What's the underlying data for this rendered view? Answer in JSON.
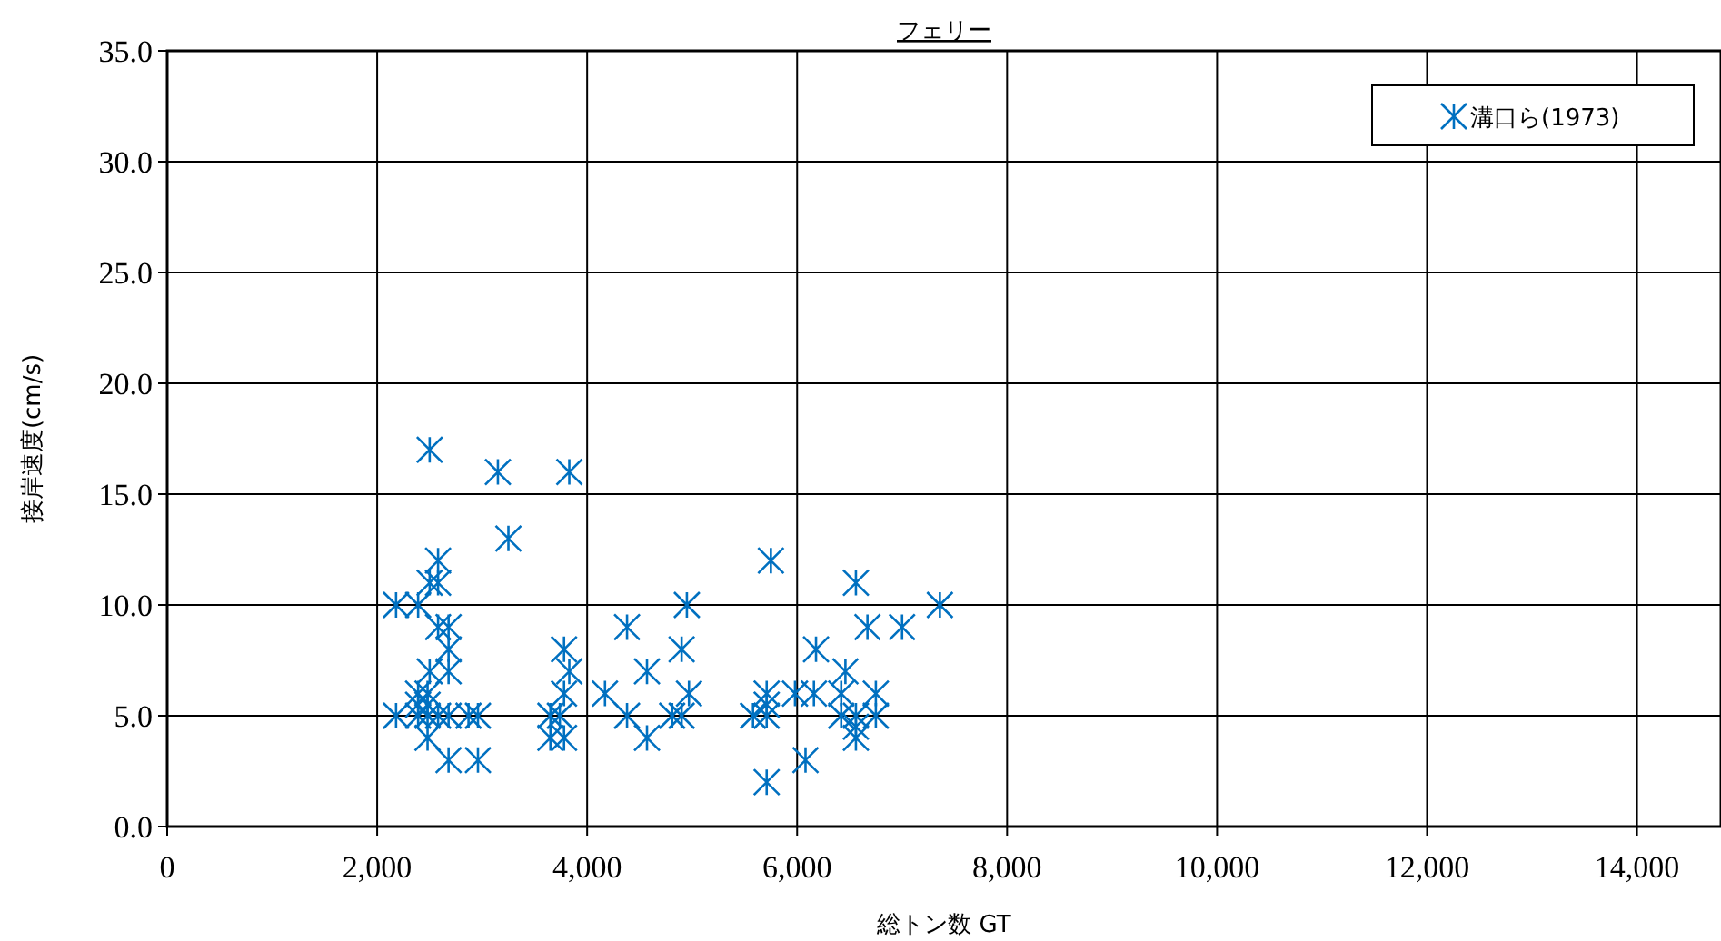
{
  "chart_data": {
    "type": "scatter",
    "title": "フェリー",
    "xlabel": "総トン数 GT",
    "ylabel": "接岸速度(cm/s)",
    "xlim": [
      0,
      14800
    ],
    "ylim": [
      0,
      35
    ],
    "xticks": [
      {
        "value": 0,
        "label": "0"
      },
      {
        "value": 2000,
        "label": "2,000"
      },
      {
        "value": 4000,
        "label": "4,000"
      },
      {
        "value": 6000,
        "label": "6,000"
      },
      {
        "value": 8000,
        "label": "8,000"
      },
      {
        "value": 10000,
        "label": "10,000"
      },
      {
        "value": 12000,
        "label": "12,000"
      },
      {
        "value": 14000,
        "label": "14,000"
      }
    ],
    "yticks": [
      {
        "value": 0,
        "label": "0.0"
      },
      {
        "value": 5,
        "label": "5.0"
      },
      {
        "value": 10,
        "label": "10.0"
      },
      {
        "value": 15,
        "label": "15.0"
      },
      {
        "value": 20,
        "label": "20.0"
      },
      {
        "value": 25,
        "label": "25.0"
      },
      {
        "value": 30,
        "label": "30.0"
      },
      {
        "value": 35,
        "label": "35.0"
      }
    ],
    "grid": true,
    "legend": "top right",
    "marker": "cross",
    "series": [
      {
        "name": "溝口ら(1973)",
        "color": "#0070c0",
        "x": [
          2180,
          2180,
          2500,
          3150,
          3830,
          3250,
          2580,
          2500,
          2580,
          2390,
          2580,
          2680,
          2680,
          2500,
          2680,
          2390,
          2480,
          2390,
          2480,
          2580,
          2680,
          2870,
          2960,
          2480,
          2680,
          2960,
          2390,
          2480,
          3780,
          3830,
          3780,
          3650,
          3740,
          3650,
          3780,
          5750,
          6560,
          4950,
          7360,
          4380,
          6670,
          7000,
          4900,
          6180,
          4570,
          6460,
          4170,
          4970,
          5710,
          5980,
          6160,
          6420,
          6750,
          4380,
          4810,
          4900,
          5580,
          5710,
          6420,
          6560,
          6750,
          4570,
          6560,
          6080,
          5710,
          5710,
          6560
        ],
        "values": [
          10,
          5,
          17,
          16,
          16,
          13,
          12,
          11,
          11,
          10,
          9,
          9,
          8,
          7,
          7,
          6,
          6,
          5,
          5,
          5,
          5,
          5,
          5,
          4,
          3,
          3,
          5.5,
          5.5,
          8,
          7,
          6,
          5,
          5,
          4,
          4,
          12,
          11,
          10,
          10,
          9,
          9,
          9,
          8,
          8,
          7,
          7,
          6,
          6,
          6,
          6,
          6,
          6,
          6,
          5,
          5,
          5,
          5,
          5,
          5,
          5,
          5,
          4,
          4,
          3,
          2,
          5.5,
          4.5
        ]
      }
    ]
  }
}
